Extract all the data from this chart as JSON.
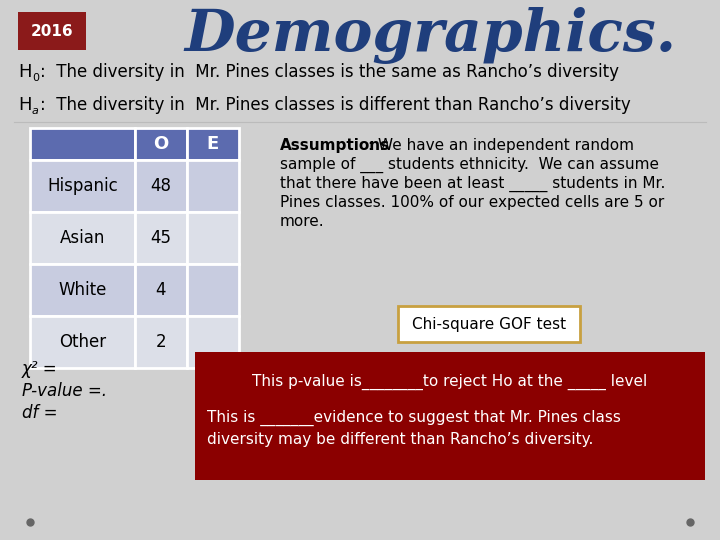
{
  "title": "Demographics.",
  "year": "2016",
  "year_bg": "#8B1A1A",
  "year_color": "#ffffff",
  "title_color": "#1F3E7C",
  "bg_color": "#d0d0d0",
  "table_header_bg": "#5C6BAF",
  "table_header_color": "#ffffff",
  "table_row_bg_even": "#c8cce0",
  "table_row_bg_odd": "#dcdfe8",
  "table_border_color": "#ffffff",
  "table_rows": [
    [
      "Hispanic",
      "48",
      ""
    ],
    [
      "Asian",
      "45",
      ""
    ],
    [
      "White",
      "4",
      ""
    ],
    [
      "Other",
      "2",
      ""
    ]
  ],
  "chi_square_text": "Chi-square GOF test",
  "chi_square_border": "#C8A040",
  "bottom_box_bg": "#8B0000",
  "bottom_box_color": "#ffffff",
  "bottom_line1": "This p-value is________to reject Ho at the _____ level",
  "bottom_line2a": "This is _______evidence to suggest that Mr. Pines class",
  "bottom_line2b": "diversity may be different than Rancho’s diversity.",
  "bullet_color": "#666666",
  "assumptions_line1_bold": "Assumptions",
  "assumptions_line1_rest": ": We have an independent random",
  "assumptions_lines": [
    "sample of ___ students ethnicity.  We can assume",
    "that there have been at least _____ students in Mr.",
    "Pines classes. 100% of our expected cells are 5 or",
    "more."
  ]
}
